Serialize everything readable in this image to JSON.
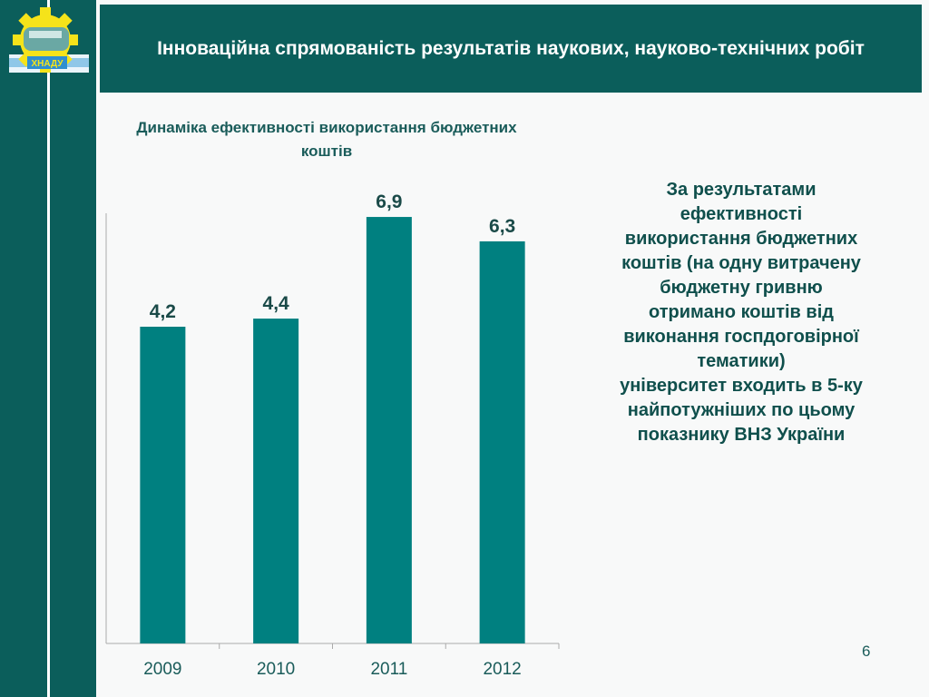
{
  "header": {
    "title": "Інноваційна спрямованість результатів наукових, науково-технічних робіт"
  },
  "logo": {
    "text": "ХНАДУ"
  },
  "chart_data": {
    "type": "bar",
    "title": "Динаміка ефективності використання бюджетних коштів",
    "categories": [
      "2009",
      "2010",
      "2011",
      "2012"
    ],
    "values": [
      4.2,
      4.4,
      6.9,
      6.3
    ],
    "data_labels": [
      "4,2",
      "4,4",
      "6,9",
      "6,3"
    ],
    "xlabel": "",
    "ylabel": "",
    "grid": false,
    "bar_color": "#008080"
  },
  "side_text": {
    "lines": [
      "За результатами",
      "ефективності",
      "використання бюджетних",
      "коштів (на одну витрачену",
      "бюджетну гривню",
      "отримано коштів від",
      "виконання госпдоговірної",
      "тематики)",
      "університет входить в 5-ку",
      "найпотужніших по цьому",
      "показнику ВНЗ України"
    ]
  },
  "page_number": "6",
  "colors": {
    "primary": "#0b5e5b",
    "text": "#1a5c5a",
    "bar": "#008080"
  }
}
